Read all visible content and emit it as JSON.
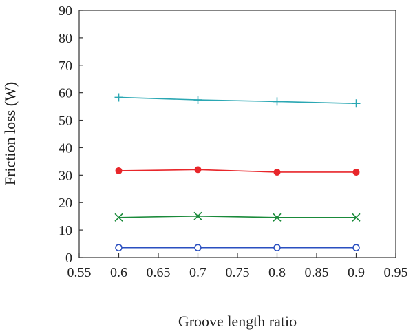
{
  "chart_data": {
    "type": "line",
    "title": "",
    "xlabel": "Groove length ratio",
    "ylabel": "Friction loss (W)",
    "xlim": [
      0.55,
      0.95
    ],
    "ylim": [
      0,
      90
    ],
    "x_ticks": [
      "0.55",
      "0.6",
      "0.65",
      "0.7",
      "0.75",
      "0.8",
      "0.85",
      "0.9",
      "0.95"
    ],
    "y_ticks": [
      "0",
      "10",
      "20",
      "30",
      "40",
      "50",
      "60",
      "70",
      "80",
      "90"
    ],
    "grid": false,
    "legend": "none",
    "x": [
      0.6,
      0.7,
      0.8,
      0.9
    ],
    "series": [
      {
        "marker": "plus",
        "color": "#2aa7b3",
        "values": [
          58.3,
          57.4,
          56.8,
          56.1
        ]
      },
      {
        "marker": "filled-circle",
        "color": "#e8262a",
        "values": [
          31.6,
          32.0,
          31.1,
          31.1
        ]
      },
      {
        "marker": "cross",
        "color": "#1a8a3a",
        "values": [
          14.6,
          15.1,
          14.6,
          14.6
        ]
      },
      {
        "marker": "open-circle",
        "color": "#2a4fc0",
        "values": [
          3.6,
          3.6,
          3.6,
          3.6
        ]
      }
    ]
  }
}
